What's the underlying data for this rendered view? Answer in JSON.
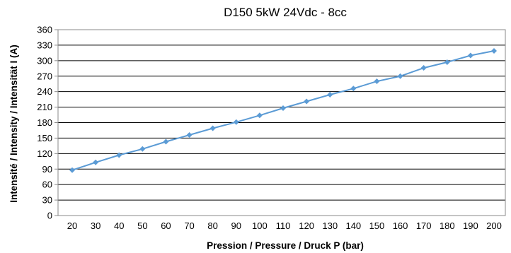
{
  "chart_data": {
    "type": "line",
    "title": "D150 5kW 24Vdc - 8cc",
    "xlabel": "Pression / Pressure / Druck P (bar)",
    "ylabel": "Intensité / Intensity / Intensität I (A)",
    "xlim": [
      20,
      200
    ],
    "ylim": [
      0,
      360
    ],
    "x_ticks": [
      20,
      30,
      40,
      50,
      60,
      70,
      80,
      90,
      100,
      110,
      120,
      130,
      140,
      150,
      160,
      170,
      180,
      190,
      200
    ],
    "y_ticks": [
      0,
      30,
      60,
      90,
      120,
      150,
      180,
      210,
      240,
      270,
      300,
      330,
      360
    ],
    "grid": true,
    "series_color": "#5b9bd5",
    "series": [
      {
        "x": [
          20,
          30,
          40,
          50,
          60,
          70,
          80,
          90,
          100,
          110,
          120,
          130,
          140,
          150,
          160,
          170,
          180,
          190,
          200
        ],
        "values": [
          88,
          103,
          117,
          129,
          143,
          156,
          169,
          181,
          194,
          208,
          221,
          234,
          246,
          260,
          270,
          286,
          297,
          310,
          319
        ]
      }
    ]
  }
}
